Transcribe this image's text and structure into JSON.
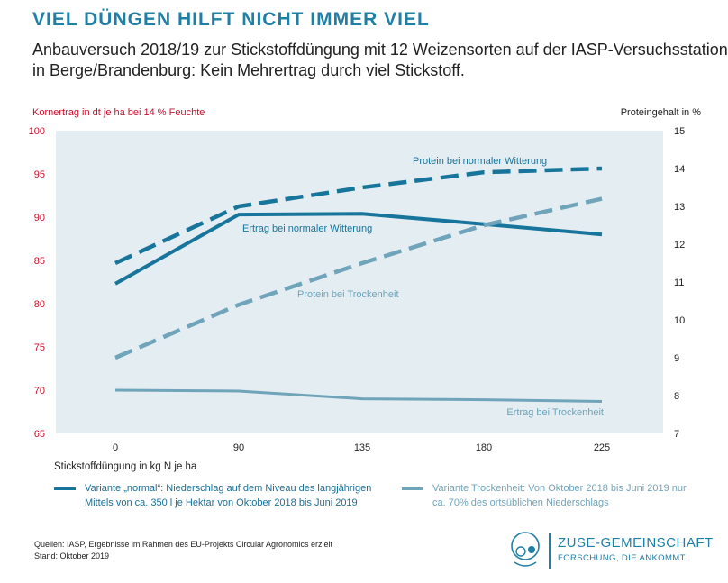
{
  "header": {
    "title": "VIEL DÜNGEN HILFT NICHT IMMER VIEL",
    "subtitle_line1": "Anbauversuch 2018/19 zur Stickstoffdüngung mit 12 Weizensorten auf der IASP-Versuchsstation",
    "subtitle_line2": "in Berge/Brandenburg: Kein Mehrertrag durch viel Stickstoff."
  },
  "chart_data": {
    "type": "line",
    "x": [
      0,
      90,
      135,
      180,
      225
    ],
    "xlabel": "Stickstoffdüngung in kg N je ha",
    "ylabel": "Kornertrag in dt je ha bei 14 % Feuchte",
    "y2label": "Proteingehalt in %",
    "ylim": [
      65,
      100
    ],
    "y2lim": [
      7,
      15
    ],
    "yticks": [
      65,
      70,
      75,
      80,
      85,
      90,
      95,
      100
    ],
    "y2ticks": [
      7,
      8,
      9,
      10,
      11,
      12,
      13,
      14,
      15
    ],
    "grid": false,
    "series": [
      {
        "name": "Protein bei normaler Witterung",
        "axis": "right",
        "style": "dashed",
        "color": "#17759c",
        "values": [
          11.5,
          13.0,
          13.5,
          13.9,
          14.0
        ]
      },
      {
        "name": "Ertrag bei normaler Witterung",
        "axis": "left",
        "style": "solid",
        "color": "#17759c",
        "values": [
          82.3,
          90.3,
          90.4,
          89.2,
          88.0
        ]
      },
      {
        "name": "Protein bei Trockenheit",
        "axis": "right",
        "style": "dashed",
        "color": "#6fa4ba",
        "values": [
          9.0,
          10.4,
          11.5,
          12.5,
          13.2
        ]
      },
      {
        "name": "Ertrag bei Trockenheit",
        "axis": "left",
        "style": "solid",
        "color": "#6fa4ba",
        "values": [
          70.0,
          69.9,
          69.0,
          68.9,
          68.7
        ]
      }
    ]
  },
  "legend": {
    "normal_line1": "Variante „normal“: Niederschlag auf dem Niveau des langjährigen",
    "normal_line2": "Mittels von ca. 350 l je Hektar von Oktober 2018 bis Juni 2019",
    "dry_line1": "Variante Trockenheit: Von Oktober 2018 bis Juni 2019 nur",
    "dry_line2": "ca. 70% des ortsüblichen Niederschlags"
  },
  "footer": {
    "sources_line1": "Quellen: IASP, Ergebnisse im Rahmen des EU-Projekts Circular Agronomics erzielt",
    "sources_line2": "Stand: Oktober 2019",
    "logo_name": "ZUSE-GEMEINSCHAFT",
    "logo_claim": "FORSCHUNG, DIE ANKOMMT."
  }
}
